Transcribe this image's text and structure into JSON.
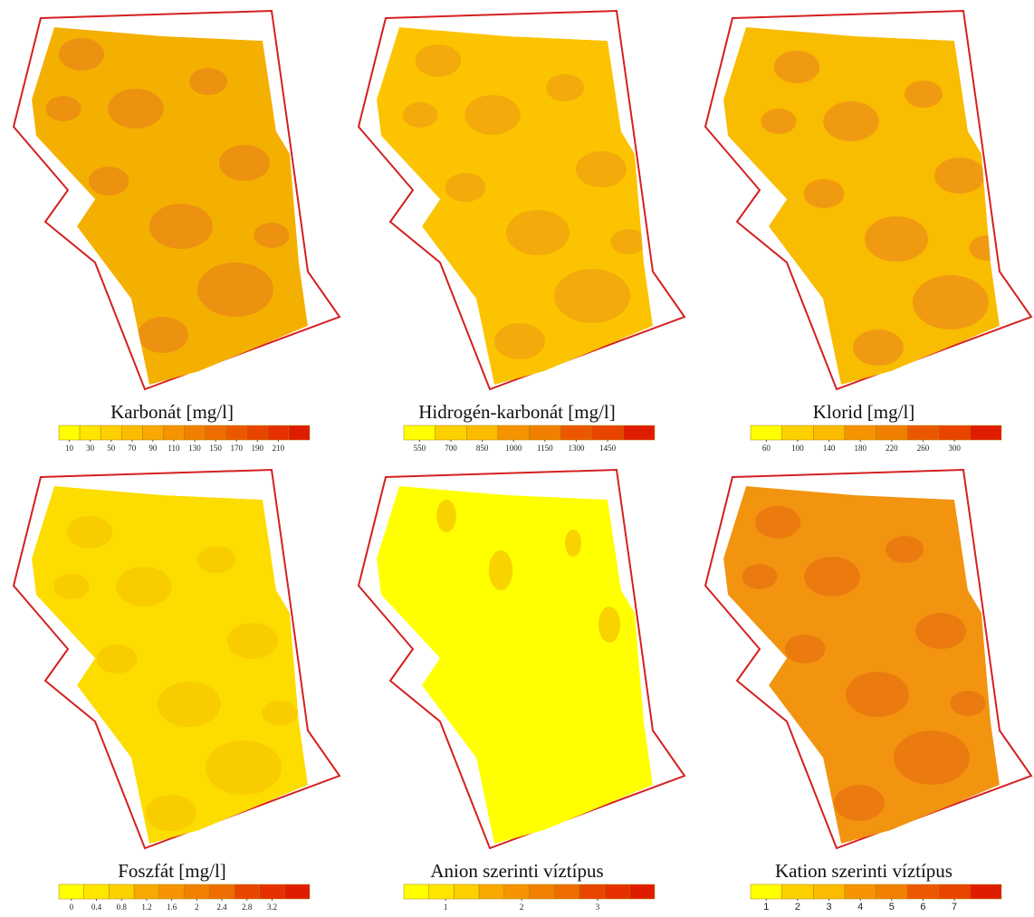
{
  "panels": [
    {
      "title": "Karbonát [mg/l]",
      "ticks": [
        10,
        30,
        50,
        70,
        90,
        110,
        130,
        150,
        170,
        190,
        210
      ]
    },
    {
      "title": "Hidrogén-karbonát [mg/l]",
      "ticks": [
        550,
        700,
        850,
        1000,
        1150,
        1300,
        1450
      ]
    },
    {
      "title": "Klorid [mg/l]",
      "ticks": [
        60,
        100,
        140,
        180,
        220,
        260,
        300
      ]
    },
    {
      "title": "Foszfát [mg/l]",
      "ticks": [
        0,
        0.4,
        0.8,
        1.2,
        1.6,
        2,
        2.4,
        2.8,
        3.2
      ]
    },
    {
      "title": "Anion szerinti víztípus",
      "ticks": [
        1,
        2,
        3
      ]
    },
    {
      "title": "Kation szerinti víztípus",
      "ticks": [
        1,
        2,
        3,
        4,
        5,
        6,
        7
      ]
    }
  ]
}
